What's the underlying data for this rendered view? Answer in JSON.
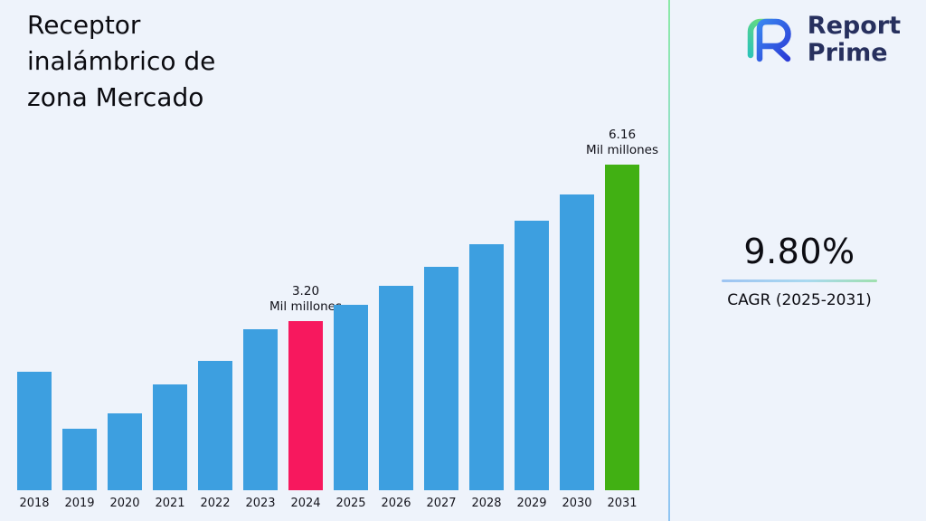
{
  "logo": {
    "line1": "Report",
    "line2": "Prime"
  },
  "cagr": {
    "value": "9.80%",
    "label": "CAGR (2025-2031)"
  },
  "chart_data": {
    "type": "bar",
    "title": "Receptor inalámbrico de zona Mercado",
    "unit": "Mil millones",
    "categories": [
      "2018",
      "2019",
      "2020",
      "2021",
      "2022",
      "2023",
      "2024",
      "2025",
      "2026",
      "2027",
      "2028",
      "2029",
      "2030",
      "2031"
    ],
    "values": [
      2.25,
      1.17,
      1.45,
      2.0,
      2.45,
      3.05,
      3.2,
      3.51,
      3.86,
      4.23,
      4.65,
      5.1,
      5.6,
      6.16
    ],
    "annotations": {
      "2024": "3.20",
      "2031": "6.16"
    },
    "colors": {
      "default": "#3d9fe0",
      "2024": "#f7185e",
      "2031": "#41b013"
    },
    "background": "#eef3fb",
    "xlabel": "",
    "ylabel": "",
    "ylim": [
      0,
      6.16
    ],
    "grid": false,
    "legend": "none"
  }
}
